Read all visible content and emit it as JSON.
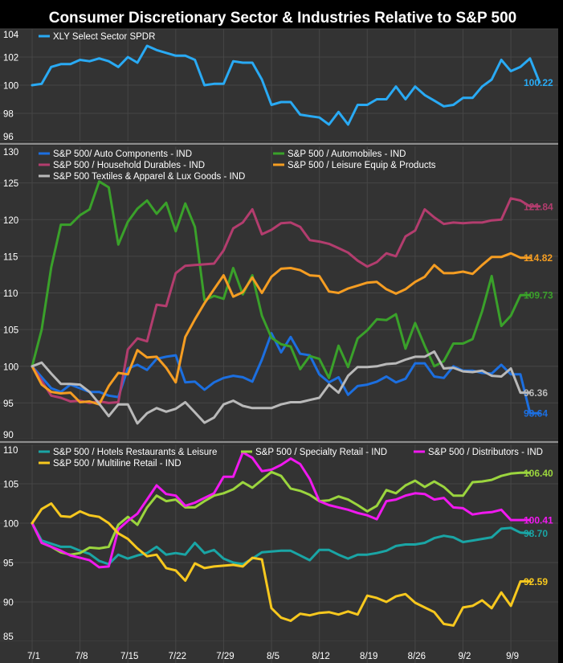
{
  "title": "Consumer Discretionary Sector & Industries Relative to S&P 500",
  "colors": {
    "page_bg": "#000000",
    "panel_bg": "#333333",
    "grid": "#464646",
    "separator": "#8a8a8a",
    "text": "#ffffff"
  },
  "chart_data": {
    "type": "line",
    "x_tick_labels": [
      "7/1",
      "7/8",
      "7/15",
      "7/22",
      "7/29",
      "8/5",
      "8/12",
      "8/19",
      "8/26",
      "9/2",
      "9/9"
    ],
    "x_tick_index": [
      0,
      5,
      10,
      15,
      20,
      25,
      30,
      35,
      40,
      45,
      50
    ],
    "x_range": [
      0,
      51
    ],
    "grid": true,
    "panels": [
      {
        "id": "xly",
        "yticks": [
          96,
          98,
          100,
          102,
          104
        ],
        "ylim": [
          96,
          104
        ],
        "legend": [
          {
            "label": "XLY Select Sector SPDR",
            "color": "#29aaf4"
          }
        ],
        "series": [
          {
            "name": "XLY Select Sector SPDR",
            "color": "#29aaf4",
            "end_label": "100.22",
            "values": [
              100.0,
              100.1,
              101.3,
              101.5,
              101.5,
              101.8,
              101.7,
              101.9,
              101.7,
              101.3,
              102.0,
              101.6,
              102.8,
              102.5,
              102.3,
              102.1,
              102.1,
              101.8,
              100.0,
              100.1,
              100.1,
              101.7,
              101.6,
              101.6,
              100.4,
              98.6,
              98.8,
              98.8,
              97.9,
              97.8,
              97.7,
              97.2,
              98.1,
              97.2,
              98.6,
              98.6,
              99.0,
              99.0,
              99.9,
              99.0,
              99.9,
              99.3,
              98.9,
              98.5,
              98.6,
              99.1,
              99.1,
              99.9,
              100.4,
              101.8,
              101.0,
              101.3,
              101.9,
              100.2
            ]
          }
        ]
      },
      {
        "id": "industries",
        "yticks": [
          90,
          95,
          100,
          105,
          110,
          115,
          120,
          125,
          130
        ],
        "ylim": [
          90,
          130
        ],
        "legend": [
          {
            "label": "S&P 500/ Auto Components - IND",
            "color": "#1c6fe0"
          },
          {
            "label": "S&P 500 / Automobiles - IND",
            "color": "#3aa12a"
          },
          {
            "label": "S&P 500 / Household Durables - IND",
            "color": "#b33d6e"
          },
          {
            "label": "S&P 500 / Leisure Equip & Products",
            "color": "#f59d22"
          },
          {
            "label": "S&P 500 Textiles & Apparel & Lux Goods - IND",
            "color": "#b9b9b9"
          }
        ],
        "series": [
          {
            "name": "S&P 500/ Auto Components - IND",
            "color": "#1c6fe0",
            "end_label": "93.64",
            "values": [
              100.0,
              98.5,
              97.0,
              96.5,
              97.5,
              97.0,
              96.5,
              96.5,
              96.0,
              95.8,
              99.7,
              100.2,
              99.5,
              101.0,
              101.3,
              101.5,
              97.8,
              97.9,
              96.8,
              97.8,
              98.4,
              98.7,
              98.5,
              97.9,
              100.9,
              104.5,
              101.9,
              104.0,
              101.7,
              101.5,
              98.9,
              97.8,
              98.5,
              96.1,
              97.3,
              97.5,
              97.9,
              98.6,
              97.8,
              98.3,
              100.4,
              100.4,
              98.6,
              98.4,
              100.0,
              99.4,
              99.4,
              99.1,
              99.0,
              100.2,
              98.9,
              98.9,
              93.6,
              93.6
            ]
          },
          {
            "name": "S&P 500 / Automobiles - IND",
            "color": "#3aa12a",
            "end_label": "109.73",
            "values": [
              100.0,
              105.0,
              113.5,
              119.3,
              119.3,
              120.6,
              121.4,
              125.2,
              124.4,
              116.6,
              119.7,
              121.5,
              122.6,
              120.8,
              122.3,
              118.4,
              122.2,
              119.0,
              109.0,
              109.6,
              109.2,
              113.4,
              109.8,
              112.4,
              106.9,
              103.9,
              103.0,
              102.7,
              99.6,
              101.4,
              101.0,
              98.4,
              102.8,
              99.9,
              103.8,
              104.9,
              106.4,
              106.3,
              107.1,
              102.4,
              105.9,
              102.8,
              100.0,
              100.7,
              103.1,
              103.1,
              103.7,
              107.5,
              112.3,
              105.5,
              106.9,
              109.7,
              109.7
            ]
          },
          {
            "name": "S&P 500 / Household Durables - IND",
            "color": "#b33d6e",
            "end_label": "121.84",
            "values": [
              100.0,
              98.0,
              96.0,
              95.7,
              95.2,
              95.3,
              95.0,
              95.2,
              95.0,
              95.1,
              102.3,
              103.8,
              103.4,
              108.4,
              108.2,
              112.7,
              113.7,
              113.8,
              113.9,
              114.0,
              115.8,
              118.8,
              119.6,
              121.4,
              118.0,
              118.6,
              119.5,
              119.6,
              119.0,
              117.2,
              117.0,
              116.7,
              116.1,
              115.5,
              114.4,
              113.6,
              114.2,
              115.4,
              115.0,
              117.7,
              118.5,
              121.4,
              120.3,
              119.4,
              119.6,
              119.5,
              119.6,
              119.6,
              119.9,
              120.0,
              122.9,
              122.6,
              121.8,
              121.8
            ]
          },
          {
            "name": "S&P 500 / Leisure Equip & Products",
            "color": "#f59d22",
            "end_label": "114.82",
            "values": [
              100.0,
              97.5,
              96.5,
              96.3,
              96.4,
              95.1,
              95.2,
              94.8,
              97.3,
              99.1,
              98.9,
              102.2,
              101.2,
              101.3,
              99.8,
              97.8,
              104.0,
              106.4,
              108.6,
              110.5,
              112.4,
              109.5,
              110.1,
              112.1,
              110.0,
              112.2,
              113.3,
              113.4,
              113.1,
              112.4,
              112.3,
              110.2,
              110.0,
              110.6,
              111.0,
              111.4,
              111.5,
              110.5,
              109.9,
              110.5,
              111.5,
              112.2,
              113.8,
              112.7,
              112.7,
              112.9,
              112.6,
              113.8,
              114.9,
              114.9,
              115.4,
              114.8,
              114.8
            ]
          },
          {
            "name": "S&P 500 Textiles & Apparel & Lux Goods - IND",
            "color": "#b9b9b9",
            "end_label": "96.36",
            "values": [
              100.0,
              100.5,
              99.0,
              97.6,
              97.6,
              97.5,
              96.5,
              94.9,
              93.2,
              94.8,
              94.8,
              92.2,
              93.6,
              94.3,
              93.8,
              94.2,
              95.1,
              93.7,
              92.3,
              93.0,
              94.8,
              95.3,
              94.6,
              94.3,
              94.3,
              94.3,
              94.8,
              95.1,
              95.1,
              95.4,
              95.7,
              97.5,
              96.4,
              98.7,
              99.9,
              99.9,
              100.0,
              100.3,
              100.4,
              100.9,
              101.3,
              101.3,
              102.0,
              99.7,
              99.8,
              99.3,
              99.2,
              99.4,
              98.7,
              98.6,
              99.7,
              96.4,
              96.4
            ]
          }
        ]
      },
      {
        "id": "retail",
        "yticks": [
          85,
          90,
          95,
          100,
          105,
          110
        ],
        "ylim": [
          85,
          110
        ],
        "legend": [
          {
            "label": "S&P 500 / Hotels Restaurants & Leisure",
            "color": "#1aa5a5"
          },
          {
            "label": "S&P 500 / Specialty Retail - IND",
            "color": "#9bd53e"
          },
          {
            "label": "S&P 500 / Distributors - IND",
            "color": "#f019ef"
          },
          {
            "label": "S&P 500 / Multiline Retail - IND",
            "color": "#f7c81e"
          }
        ],
        "series": [
          {
            "name": "S&P 500 / Hotels Restaurants & Leisure",
            "color": "#1aa5a5",
            "end_label": "98.70",
            "values": [
              100.0,
              97.8,
              97.4,
              97.0,
              97.0,
              96.5,
              96.1,
              95.2,
              94.8,
              96.0,
              95.5,
              95.9,
              96.2,
              97.0,
              96.0,
              96.2,
              96.0,
              97.5,
              96.2,
              96.6,
              95.5,
              95.0,
              94.8,
              95.5,
              96.3,
              96.4,
              96.5,
              96.5,
              95.9,
              95.3,
              96.6,
              96.6,
              96.0,
              95.5,
              96.0,
              96.0,
              96.2,
              96.5,
              97.1,
              97.3,
              97.3,
              97.5,
              98.1,
              98.4,
              98.2,
              97.6,
              97.8,
              98.0,
              98.2,
              99.3,
              99.4,
              98.8,
              98.7
            ]
          },
          {
            "name": "S&P 500 / Specialty Retail - IND",
            "color": "#9bd53e",
            "end_label": "106.40",
            "values": [
              100.0,
              97.5,
              97.0,
              96.3,
              96.0,
              96.2,
              96.9,
              96.8,
              97.0,
              99.8,
              100.8,
              99.8,
              102.0,
              103.5,
              102.8,
              103.0,
              102.0,
              102.0,
              102.8,
              103.5,
              103.8,
              104.3,
              105.2,
              104.5,
              105.5,
              106.5,
              106.0,
              104.4,
              104.1,
              103.6,
              102.8,
              102.9,
              103.4,
              103.0,
              102.3,
              101.5,
              102.2,
              104.2,
              103.8,
              104.8,
              105.4,
              104.6,
              105.3,
              104.6,
              103.5,
              103.5,
              105.2,
              105.3,
              105.5,
              106.0,
              106.3,
              106.4,
              106.4
            ]
          },
          {
            "name": "S&P 500 / Distributors - IND",
            "color": "#f019ef",
            "end_label": "100.41",
            "values": [
              100.0,
              97.5,
              97.0,
              96.5,
              95.9,
              95.6,
              95.3,
              94.4,
              94.5,
              99.2,
              100.3,
              101.2,
              103.0,
              104.8,
              103.7,
              103.5,
              102.2,
              102.6,
              103.2,
              103.8,
              105.9,
              105.9,
              109.0,
              108.3,
              106.6,
              106.8,
              107.4,
              108.2,
              107.5,
              105.6,
              102.8,
              102.3,
              102.0,
              101.7,
              101.3,
              101.0,
              100.5,
              102.8,
              103.0,
              103.5,
              103.8,
              103.7,
              103.0,
              103.2,
              102.0,
              101.9,
              101.1,
              101.3,
              101.4,
              101.7,
              100.4,
              100.4,
              100.4
            ]
          },
          {
            "name": "S&P 500 / Multiline Retail - IND",
            "color": "#f7c81e",
            "end_label": "92.59",
            "values": [
              100.0,
              101.8,
              102.5,
              100.9,
              100.8,
              101.5,
              101.0,
              100.8,
              100.0,
              98.7,
              98.0,
              96.8,
              95.8,
              96.0,
              94.3,
              94.0,
              92.7,
              94.9,
              94.3,
              94.5,
              94.6,
              94.7,
              94.5,
              95.6,
              95.4,
              89.2,
              88.0,
              87.6,
              88.5,
              88.3,
              88.6,
              88.7,
              88.4,
              88.8,
              88.4,
              90.8,
              90.5,
              90.0,
              90.7,
              91.0,
              89.9,
              89.3,
              88.7,
              87.2,
              87.0,
              89.3,
              89.5,
              90.2,
              89.2,
              91.2,
              89.5,
              92.6,
              92.6
            ]
          }
        ]
      }
    ]
  }
}
